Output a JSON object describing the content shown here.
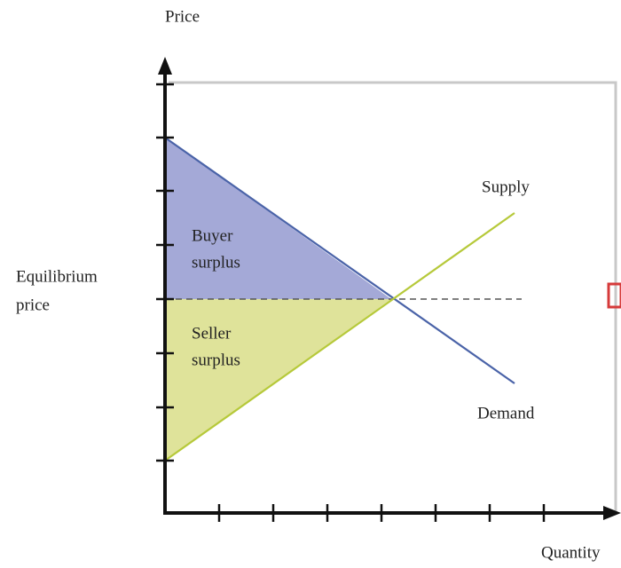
{
  "axes": {
    "y_label": "Price",
    "x_label": "Quantity"
  },
  "labels": {
    "equilibrium_price": [
      "Equilibrium",
      "price"
    ],
    "buyer_surplus": [
      "Buyer",
      "surplus"
    ],
    "seller_surplus": [
      "Seller",
      "surplus"
    ],
    "supply": "Supply",
    "demand": "Demand"
  }
}
